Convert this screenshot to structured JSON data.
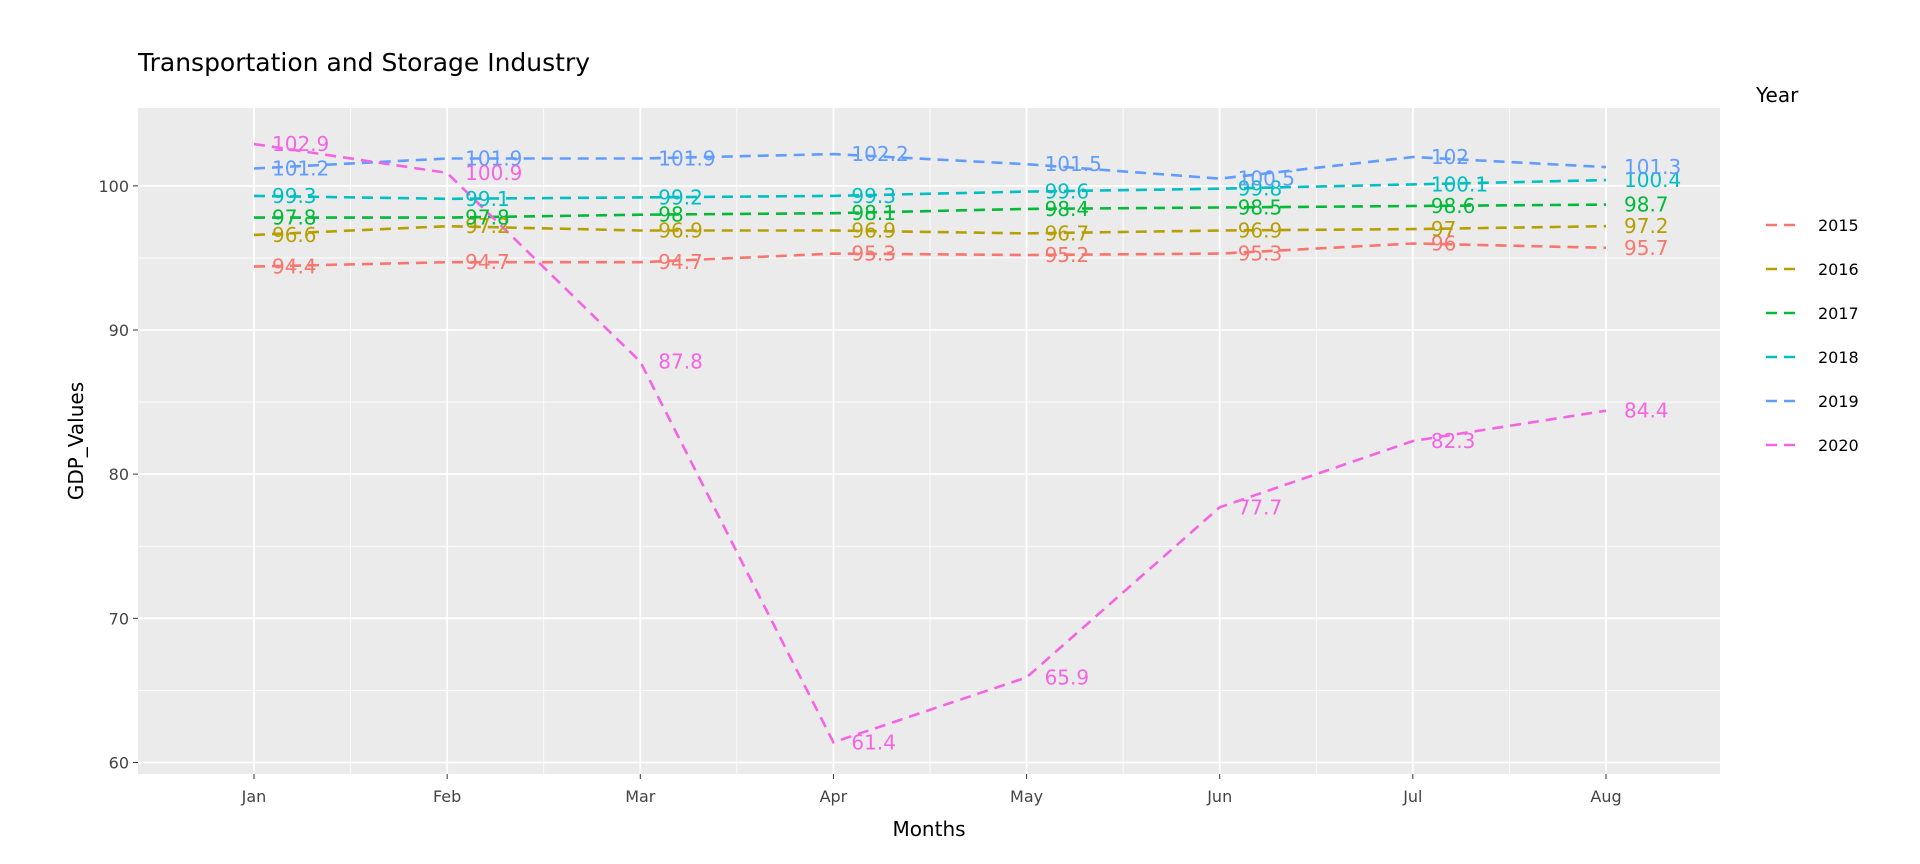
{
  "chart_data": {
    "type": "line",
    "title": "Transportation and Storage Industry",
    "xlabel": "Months",
    "ylabel": "GDP_Values",
    "categories": [
      "Jan",
      "Feb",
      "Mar",
      "Apr",
      "May",
      "Jun",
      "Jul",
      "Aug"
    ],
    "yticks": [
      60,
      70,
      80,
      90,
      100
    ],
    "ylim": [
      59.2,
      105.4
    ],
    "grid": true,
    "line_style": "dashed",
    "legend_title": "Year",
    "legend_position": "right",
    "series": [
      {
        "name": "2015",
        "color": "#F8766D",
        "values": [
          94.4,
          94.7,
          94.7,
          95.3,
          95.2,
          95.3,
          96,
          95.7
        ]
      },
      {
        "name": "2016",
        "color": "#B79F00",
        "values": [
          96.6,
          97.2,
          96.9,
          96.9,
          96.7,
          96.9,
          97,
          97.2
        ]
      },
      {
        "name": "2017",
        "color": "#00BA38",
        "values": [
          97.8,
          97.8,
          98,
          98.1,
          98.4,
          98.5,
          98.6,
          98.7
        ]
      },
      {
        "name": "2018",
        "color": "#00BFC4",
        "values": [
          99.3,
          99.1,
          99.2,
          99.3,
          99.6,
          99.8,
          100.1,
          100.4
        ]
      },
      {
        "name": "2019",
        "color": "#619CFF",
        "values": [
          101.2,
          101.9,
          101.9,
          102.2,
          101.5,
          100.5,
          102,
          101.3
        ]
      },
      {
        "name": "2020",
        "color": "#F564E3",
        "values": [
          102.9,
          100.9,
          87.8,
          61.4,
          65.9,
          77.7,
          82.3,
          84.4
        ]
      }
    ]
  }
}
